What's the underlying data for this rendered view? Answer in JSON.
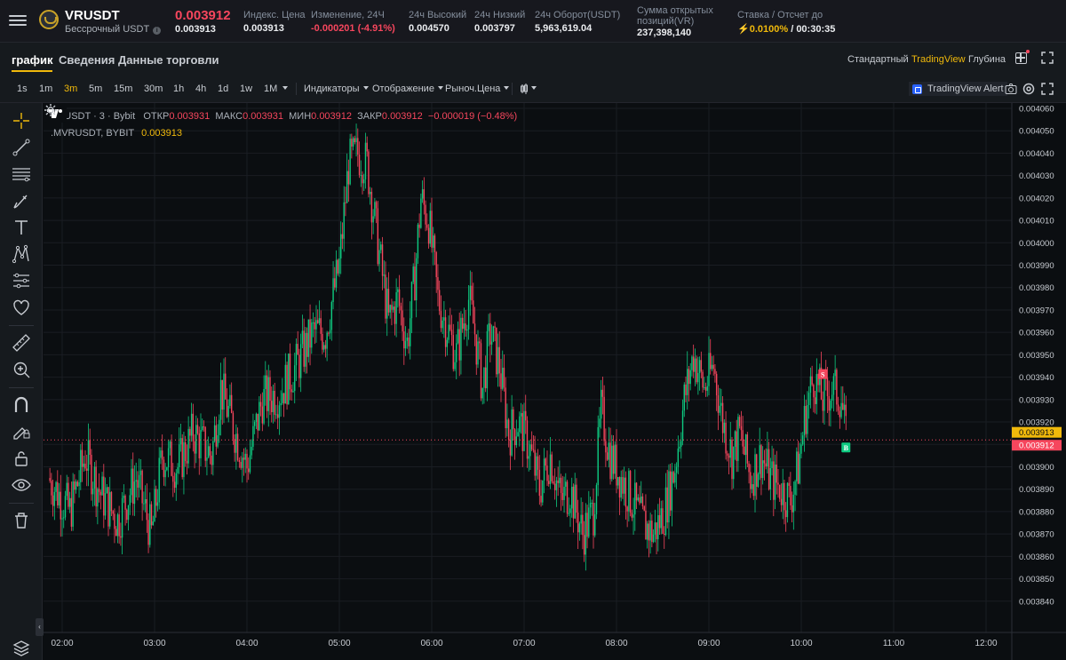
{
  "header": {
    "symbol": "VRUSDT",
    "subtitle": "Бессрочный USDT",
    "info_glyph": "i",
    "last_price": "0.003912",
    "mark_price": "0.003913",
    "stats": [
      {
        "label": "Индекс. Цена",
        "value": "0.003913",
        "tone": "normal"
      },
      {
        "label": "Изменение, 24Ч",
        "value": "-0.000201 (-4.91%)",
        "tone": "negative"
      },
      {
        "label": "24ч Высокий",
        "value": "0.004570",
        "tone": "normal"
      },
      {
        "label": "24ч Низкий",
        "value": "0.003797",
        "tone": "normal"
      },
      {
        "label": "24ч Оборот(USDT)",
        "value": "5,963,619.04",
        "tone": "normal"
      }
    ],
    "open_interest": {
      "label_line1": "Сумма открытых",
      "label_line2": "позиций(VR)",
      "value": "237,398,140"
    },
    "funding": {
      "label": "Ставка / Отсчет до",
      "bolt": "⚡",
      "rate": "0.0100%",
      "countdown": "/ 00:30:35"
    }
  },
  "tabs": {
    "items": [
      "график",
      "Сведения",
      "Данные торговли"
    ],
    "active": 0,
    "views": [
      "Стандартный",
      "TradingView",
      "Глубина"
    ],
    "active_view": 1
  },
  "toolbar": {
    "timeframes": [
      "1s",
      "1m",
      "3m",
      "5m",
      "15m",
      "30m",
      "1h",
      "4h",
      "1d",
      "1w",
      "1M"
    ],
    "active_timeframe": 2,
    "dropdowns": [
      "Индикаторы",
      "Отображение",
      "Рыноч.Цена"
    ],
    "alert_label": "TradingView Alert"
  },
  "icons": {
    "menu": "hamburger-icon",
    "coin": "vr-coin-icon",
    "layout": "grid-layout-icon",
    "expand": "expand-icon",
    "chart_type": "candles-icon",
    "camera": "camera-icon",
    "settings": "settings-icon",
    "fullscreen": "fullscreen-icon",
    "tools": [
      "crosshair-icon",
      "trend-line-icon",
      "horizontal-lines-icon",
      "brush-icon",
      "text-icon",
      "pattern-icon",
      "measure-lines-icon",
      "heart-icon",
      "ruler-icon",
      "zoom-in-icon",
      "magnet-icon",
      "lock-drawing-icon",
      "lock-icon",
      "eye-icon",
      "trash-icon",
      "layers-icon"
    ]
  },
  "colors": {
    "up": "#0ecb81",
    "down": "#f6465d",
    "accent": "#f0b90b",
    "background": "#0b0e11"
  },
  "legend": {
    "symbol": "VRUSDT · 3 · Bybit",
    "open_label": "ОТКР",
    "open": "0.003931",
    "high_label": "МАКС",
    "high": "0.003931",
    "low_label": "МИН",
    "low": "0.003912",
    "close_label": "ЗАКР",
    "close": "0.003912",
    "change": "−0.000019 (−0.48%)",
    "mark_label": ".MVRUSDT, BYBIT",
    "mark_value": "0.003913"
  },
  "chart_data": {
    "type": "candlestick",
    "interval": "3m",
    "y_axis": {
      "min": 0.00383,
      "max": 0.00406,
      "ticks": [
        "0.004060",
        "0.004050",
        "0.004040",
        "0.004030",
        "0.004020",
        "0.004010",
        "0.004000",
        "0.003990",
        "0.003980",
        "0.003970",
        "0.003960",
        "0.003950",
        "0.003940",
        "0.003930",
        "0.003920",
        "0.003910",
        "0.003900",
        "0.003890",
        "0.003880",
        "0.003870",
        "0.003860",
        "0.003850",
        "0.003840"
      ]
    },
    "x_axis": {
      "ticks": [
        "02:00",
        "03:00",
        "04:00",
        "05:00",
        "06:00",
        "07:00",
        "08:00",
        "09:00",
        "10:00",
        "11:00",
        "12:00"
      ]
    },
    "price_labels": [
      {
        "value": 0.003913,
        "text": "0.003913",
        "color": "#f0b90b"
      },
      {
        "value": 0.003912,
        "text": "0.003912",
        "color": "#f6465d"
      }
    ],
    "markers": [
      {
        "text": "S",
        "type": "sell"
      },
      {
        "text": "B",
        "type": "buy"
      }
    ],
    "close_path": [
      [
        "01:51",
        0.003895
      ],
      [
        "02:05",
        0.00388
      ],
      [
        "02:15",
        0.003905
      ],
      [
        "02:25",
        0.003888
      ],
      [
        "02:36",
        0.003876
      ],
      [
        "02:48",
        0.003895
      ],
      [
        "02:58",
        0.00387
      ],
      [
        "03:05",
        0.003905
      ],
      [
        "03:15",
        0.0039
      ],
      [
        "03:25",
        0.003915
      ],
      [
        "03:37",
        0.003905
      ],
      [
        "03:43",
        0.003935
      ],
      [
        "03:50",
        0.00392
      ],
      [
        "04:00",
        0.0039
      ],
      [
        "04:10",
        0.00393
      ],
      [
        "04:21",
        0.003933
      ],
      [
        "04:32",
        0.003945
      ],
      [
        "04:43",
        0.00396
      ],
      [
        "04:51",
        0.00396
      ],
      [
        "05:00",
        0.00399
      ],
      [
        "05:06",
        0.004035
      ],
      [
        "05:12",
        0.00404
      ],
      [
        "05:18",
        0.004035
      ],
      [
        "05:26",
        0.003995
      ],
      [
        "05:32",
        0.003965
      ],
      [
        "05:38",
        0.003975
      ],
      [
        "05:44",
        0.003955
      ],
      [
        "05:49",
        0.003985
      ],
      [
        "05:53",
        0.00402
      ],
      [
        "05:58",
        0.00401
      ],
      [
        "06:04",
        0.003975
      ],
      [
        "06:11",
        0.00396
      ],
      [
        "06:16",
        0.00395
      ],
      [
        "06:24",
        0.003975
      ],
      [
        "06:28",
        0.00396
      ],
      [
        "06:33",
        0.003935
      ],
      [
        "06:38",
        0.00396
      ],
      [
        "06:44",
        0.003945
      ],
      [
        "06:50",
        0.003915
      ],
      [
        "06:56",
        0.00392
      ],
      [
        "07:03",
        0.00391
      ],
      [
        "07:10",
        0.00389
      ],
      [
        "07:17",
        0.003905
      ],
      [
        "07:24",
        0.003885
      ],
      [
        "07:30",
        0.00389
      ],
      [
        "07:38",
        0.00387
      ],
      [
        "07:45",
        0.00388
      ],
      [
        "07:50",
        0.003925
      ],
      [
        "07:56",
        0.003905
      ],
      [
        "08:03",
        0.003895
      ],
      [
        "08:10",
        0.003885
      ],
      [
        "08:17",
        0.003875
      ],
      [
        "08:24",
        0.00387
      ],
      [
        "08:31",
        0.00388
      ],
      [
        "08:38",
        0.0039
      ],
      [
        "08:44",
        0.00393
      ],
      [
        "08:50",
        0.00395
      ],
      [
        "08:57",
        0.003935
      ],
      [
        "09:03",
        0.003945
      ],
      [
        "09:09",
        0.00392
      ],
      [
        "09:15",
        0.003905
      ],
      [
        "09:20",
        0.003915
      ],
      [
        "09:27",
        0.003895
      ],
      [
        "09:34",
        0.003905
      ],
      [
        "09:40",
        0.003895
      ],
      [
        "09:47",
        0.00389
      ],
      [
        "09:53",
        0.003885
      ],
      [
        "09:58",
        0.0039
      ],
      [
        "10:03",
        0.003925
      ],
      [
        "10:08",
        0.00394
      ],
      [
        "10:14",
        0.00393
      ],
      [
        "10:20",
        0.003935
      ],
      [
        "10:26",
        0.003931
      ],
      [
        "10:29",
        0.003912
      ]
    ],
    "grid": true,
    "legend_position": "top-left"
  }
}
